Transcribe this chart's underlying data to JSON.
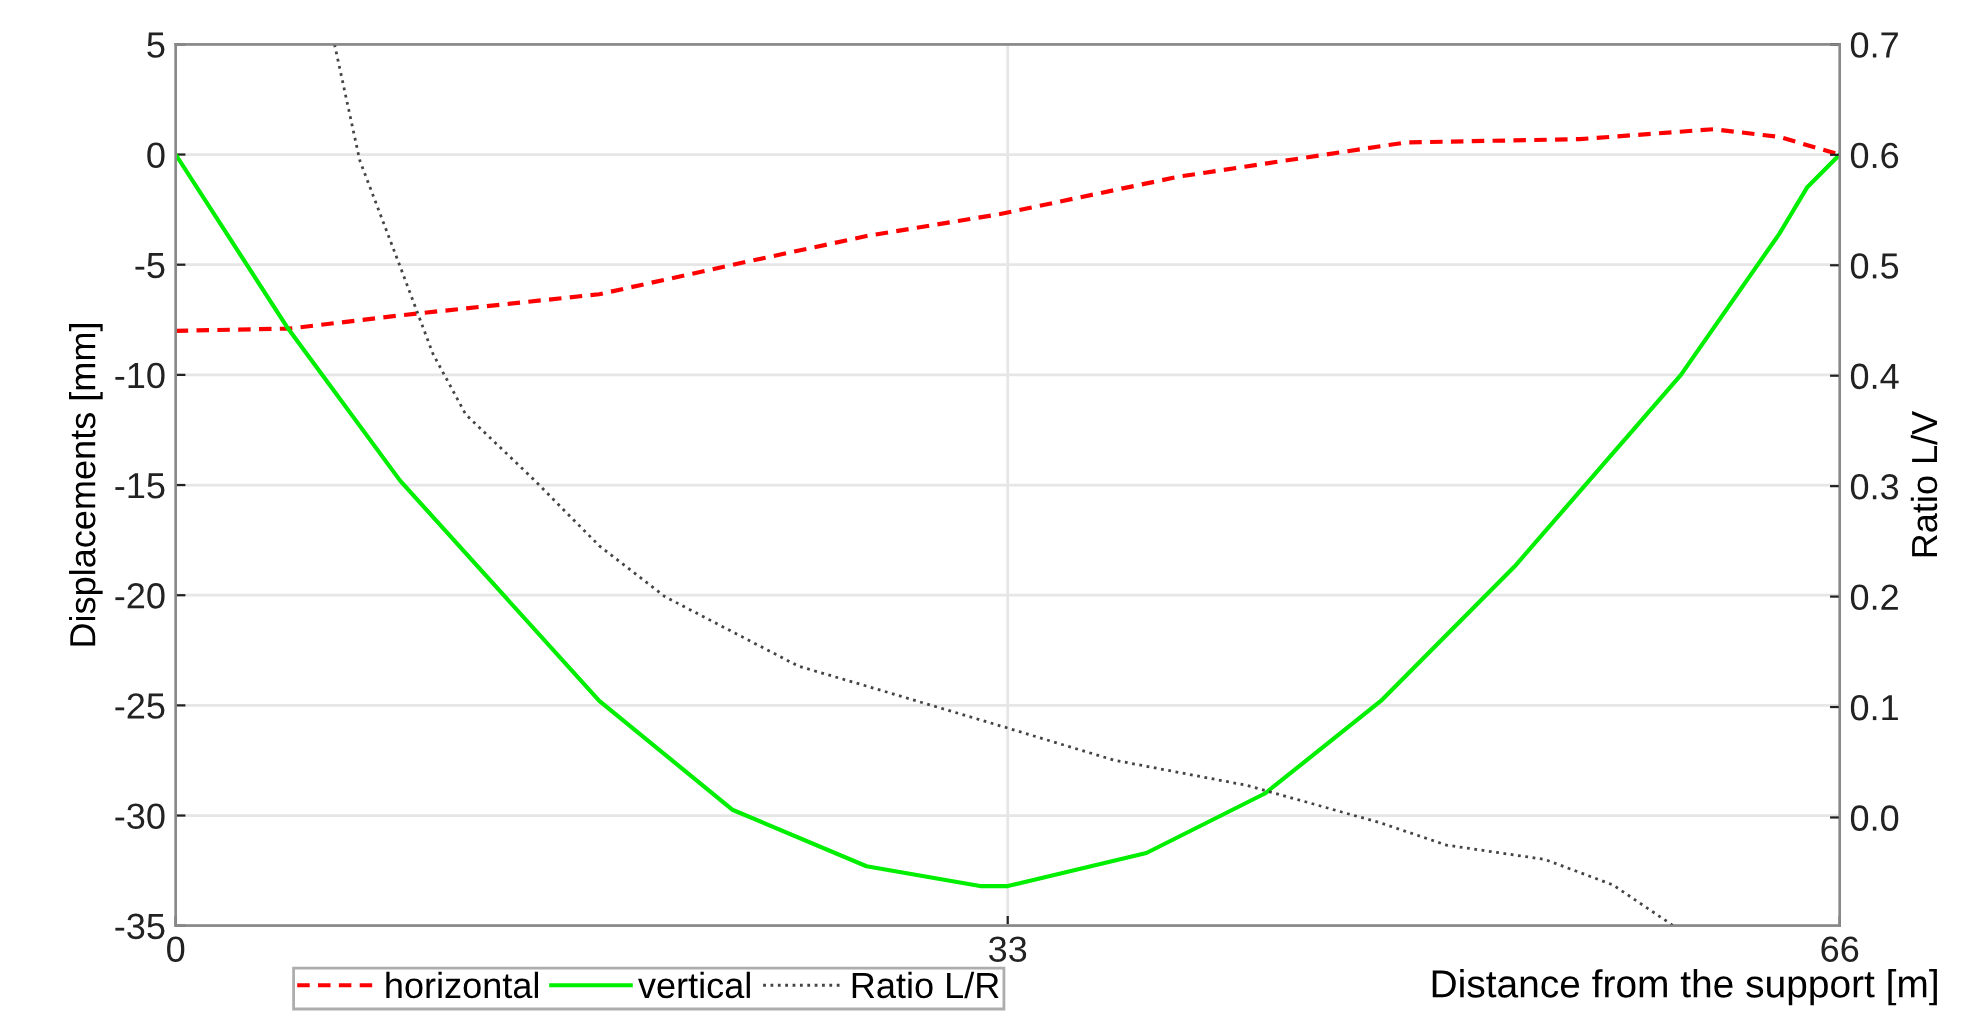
{
  "chart_data": {
    "type": "line",
    "xlabel": "Distance from the support [m]",
    "ylabel": "Displacements [mm]",
    "y2label": "Ratio L/V",
    "xlim": [
      0,
      66
    ],
    "xticks": [
      0,
      33,
      66
    ],
    "ylim": [
      -35,
      5
    ],
    "yticks": [
      -35,
      -30,
      -25,
      -20,
      -15,
      -10,
      -5,
      0,
      5
    ],
    "y2lim": [
      -0.098,
      0.7
    ],
    "y2ticks": [
      {
        "value": 0,
        "label": "0.0"
      },
      0.1,
      0.2,
      0.3,
      0.4,
      0.5,
      0.6,
      0.7
    ],
    "grid": true,
    "legend": "bottom left",
    "marker": "none",
    "series": [
      {
        "name": "horizontal",
        "color": "#ff0000",
        "line_style": "dashed",
        "x": [
          0,
          4.5,
          8.9,
          16.8,
          22.1,
          27.4,
          32.7,
          39.8,
          48.8,
          55.7,
          61,
          63.6,
          66
        ],
        "values": [
          -8,
          -7.9,
          -7.3,
          -6.34,
          -5.0,
          -3.7,
          -2.7,
          -1.0,
          0.55,
          0.7,
          1.15,
          0.8,
          0
        ]
      },
      {
        "name": "vertical",
        "color": "#00ee00",
        "line_style": "solid",
        "x": [
          0,
          4.4,
          8.9,
          16.8,
          22.1,
          27.4,
          31.9,
          33,
          38.5,
          43.2,
          47.8,
          53.1,
          59.7,
          63.6,
          64.7,
          66
        ],
        "values": [
          0,
          -7.8,
          -14.8,
          -24.8,
          -29.75,
          -32.3,
          -33.2,
          -33.2,
          -31.7,
          -29.0,
          -24.8,
          -18.7,
          -10.0,
          -3.6,
          -1.5,
          0
        ]
      },
      {
        "name": "Ratio L/R",
        "color": "#444444",
        "line_style": "dotted",
        "axis": "y2",
        "x": [
          6.3,
          7.3,
          8.9,
          10.2,
          11.5,
          14.2,
          16.8,
          19.4,
          24.7,
          27.4,
          32.7,
          37.2,
          42.5,
          47.8,
          50.4,
          54.3,
          57.0,
          59.4
        ],
        "values": [
          0.7,
          0.595,
          0.499,
          0.42,
          0.365,
          0.306,
          0.246,
          0.2,
          0.137,
          0.119,
          0.083,
          0.052,
          0.029,
          -0.005,
          -0.025,
          -0.038,
          -0.061,
          -0.098
        ]
      }
    ]
  }
}
